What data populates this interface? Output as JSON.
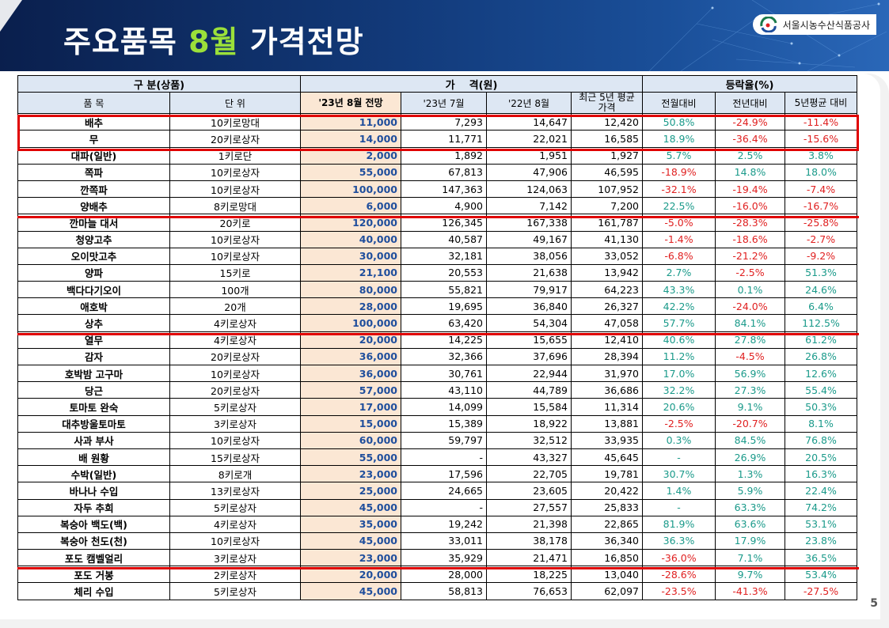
{
  "header": {
    "title_prefix": "주요품목 ",
    "title_accent": "8월",
    "title_suffix": " 가격전망",
    "org_name": "서울시농수산식품공사"
  },
  "table": {
    "group_headers": {
      "category": "구 분(상품)",
      "price": "가    격(원)",
      "change": "등락율(%)"
    },
    "col_headers": {
      "item": "품 목",
      "unit": "단 위",
      "forecast": "'23년 8월 전망",
      "jul23": "'23년 7월",
      "aug22": "'22년 8월",
      "avg5": "최근 5년 평균가격",
      "mom": "전월대비",
      "yoy": "전년대비",
      "vs5": "5년평균 대비"
    },
    "rows": [
      {
        "item": "배추",
        "unit": "10키로망대",
        "forecast": "11,000",
        "jul23": "7,293",
        "aug22": "14,647",
        "avg5": "12,420",
        "mom": "50.8%",
        "yoy": "-24.9%",
        "vs5": "-11.4%"
      },
      {
        "item": "무",
        "unit": "20키로상자",
        "forecast": "14,000",
        "jul23": "11,771",
        "aug22": "22,021",
        "avg5": "16,585",
        "mom": "18.9%",
        "yoy": "-36.4%",
        "vs5": "-15.6%"
      },
      {
        "item": "대파(일반)",
        "unit": "1키로단",
        "forecast": "2,000",
        "jul23": "1,892",
        "aug22": "1,951",
        "avg5": "1,927",
        "mom": "5.7%",
        "yoy": "2.5%",
        "vs5": "3.8%"
      },
      {
        "item": "쪽파",
        "unit": "10키로상자",
        "forecast": "55,000",
        "jul23": "67,813",
        "aug22": "47,906",
        "avg5": "46,595",
        "mom": "-18.9%",
        "yoy": "14.8%",
        "vs5": "18.0%"
      },
      {
        "item": "깐쪽파",
        "unit": "10키로상자",
        "forecast": "100,000",
        "jul23": "147,363",
        "aug22": "124,063",
        "avg5": "107,952",
        "mom": "-32.1%",
        "yoy": "-19.4%",
        "vs5": "-7.4%"
      },
      {
        "item": "양배추",
        "unit": "8키로망대",
        "forecast": "6,000",
        "jul23": "4,900",
        "aug22": "7,142",
        "avg5": "7,200",
        "mom": "22.5%",
        "yoy": "-16.0%",
        "vs5": "-16.7%"
      },
      {
        "item": "깐마늘 대서",
        "unit": "20키로",
        "forecast": "120,000",
        "jul23": "126,345",
        "aug22": "167,338",
        "avg5": "161,787",
        "mom": "-5.0%",
        "yoy": "-28.3%",
        "vs5": "-25.8%"
      },
      {
        "item": "청양고추",
        "unit": "10키로상자",
        "forecast": "40,000",
        "jul23": "40,587",
        "aug22": "49,167",
        "avg5": "41,130",
        "mom": "-1.4%",
        "yoy": "-18.6%",
        "vs5": "-2.7%"
      },
      {
        "item": "오이맛고추",
        "unit": "10키로상자",
        "forecast": "30,000",
        "jul23": "32,181",
        "aug22": "38,056",
        "avg5": "33,052",
        "mom": "-6.8%",
        "yoy": "-21.2%",
        "vs5": "-9.2%"
      },
      {
        "item": "양파",
        "unit": "15키로",
        "forecast": "21,100",
        "jul23": "20,553",
        "aug22": "21,638",
        "avg5": "13,942",
        "mom": "2.7%",
        "yoy": "-2.5%",
        "vs5": "51.3%"
      },
      {
        "item": "백다다기오이",
        "unit": "100개",
        "forecast": "80,000",
        "jul23": "55,821",
        "aug22": "79,917",
        "avg5": "64,223",
        "mom": "43.3%",
        "yoy": "0.1%",
        "vs5": "24.6%"
      },
      {
        "item": "애호박",
        "unit": "20개",
        "forecast": "28,000",
        "jul23": "19,695",
        "aug22": "36,840",
        "avg5": "26,327",
        "mom": "42.2%",
        "yoy": "-24.0%",
        "vs5": "6.4%"
      },
      {
        "item": "상추",
        "unit": "4키로상자",
        "forecast": "100,000",
        "jul23": "63,420",
        "aug22": "54,304",
        "avg5": "47,058",
        "mom": "57.7%",
        "yoy": "84.1%",
        "vs5": "112.5%"
      },
      {
        "item": "열무",
        "unit": "4키로상자",
        "forecast": "20,000",
        "jul23": "14,225",
        "aug22": "15,655",
        "avg5": "12,410",
        "mom": "40.6%",
        "yoy": "27.8%",
        "vs5": "61.2%"
      },
      {
        "item": "감자",
        "unit": "20키로상자",
        "forecast": "36,000",
        "jul23": "32,366",
        "aug22": "37,696",
        "avg5": "28,394",
        "mom": "11.2%",
        "yoy": "-4.5%",
        "vs5": "26.8%"
      },
      {
        "item": "호박밤 고구마",
        "unit": "10키로상자",
        "forecast": "36,000",
        "jul23": "30,761",
        "aug22": "22,944",
        "avg5": "31,970",
        "mom": "17.0%",
        "yoy": "56.9%",
        "vs5": "12.6%"
      },
      {
        "item": "당근",
        "unit": "20키로상자",
        "forecast": "57,000",
        "jul23": "43,110",
        "aug22": "44,789",
        "avg5": "36,686",
        "mom": "32.2%",
        "yoy": "27.3%",
        "vs5": "55.4%"
      },
      {
        "item": "토마토 완숙",
        "unit": "5키로상자",
        "forecast": "17,000",
        "jul23": "14,099",
        "aug22": "15,584",
        "avg5": "11,314",
        "mom": "20.6%",
        "yoy": "9.1%",
        "vs5": "50.3%"
      },
      {
        "item": "대추방울토마토",
        "unit": "3키로상자",
        "forecast": "15,000",
        "jul23": "15,389",
        "aug22": "18,922",
        "avg5": "13,881",
        "mom": "-2.5%",
        "yoy": "-20.7%",
        "vs5": "8.1%"
      },
      {
        "item": "사과 부사",
        "unit": "10키로상자",
        "forecast": "60,000",
        "jul23": "59,797",
        "aug22": "32,512",
        "avg5": "33,935",
        "mom": "0.3%",
        "yoy": "84.5%",
        "vs5": "76.8%"
      },
      {
        "item": "배 원황",
        "unit": "15키로상자",
        "forecast": "55,000",
        "jul23": "-",
        "aug22": "43,327",
        "avg5": "45,645",
        "mom": "-",
        "yoy": "26.9%",
        "vs5": "20.5%"
      },
      {
        "item": "수박(일반)",
        "unit": "8키로개",
        "forecast": "23,000",
        "jul23": "17,596",
        "aug22": "22,705",
        "avg5": "19,781",
        "mom": "30.7%",
        "yoy": "1.3%",
        "vs5": "16.3%"
      },
      {
        "item": "바나나 수입",
        "unit": "13키로상자",
        "forecast": "25,000",
        "jul23": "24,665",
        "aug22": "23,605",
        "avg5": "20,422",
        "mom": "1.4%",
        "yoy": "5.9%",
        "vs5": "22.4%"
      },
      {
        "item": "자두 추희",
        "unit": "5키로상자",
        "forecast": "45,000",
        "jul23": "-",
        "aug22": "27,557",
        "avg5": "25,833",
        "mom": "-",
        "yoy": "63.3%",
        "vs5": "74.2%"
      },
      {
        "item": "복숭아 백도(백)",
        "unit": "4키로상자",
        "forecast": "35,000",
        "jul23": "19,242",
        "aug22": "21,398",
        "avg5": "22,865",
        "mom": "81.9%",
        "yoy": "63.6%",
        "vs5": "53.1%"
      },
      {
        "item": "복숭아 천도(천)",
        "unit": "10키로상자",
        "forecast": "45,000",
        "jul23": "33,011",
        "aug22": "38,178",
        "avg5": "36,340",
        "mom": "36.3%",
        "yoy": "17.9%",
        "vs5": "23.8%"
      },
      {
        "item": "포도 캠벨얼리",
        "unit": "3키로상자",
        "forecast": "23,000",
        "jul23": "35,929",
        "aug22": "21,471",
        "avg5": "16,850",
        "mom": "-36.0%",
        "yoy": "7.1%",
        "vs5": "36.5%"
      },
      {
        "item": "포도 거봉",
        "unit": "2키로상자",
        "forecast": "20,000",
        "jul23": "28,000",
        "aug22": "18,225",
        "avg5": "13,040",
        "mom": "-28.6%",
        "yoy": "9.7%",
        "vs5": "53.4%"
      },
      {
        "item": "체리 수입",
        "unit": "5키로상자",
        "forecast": "45,000",
        "jul23": "58,813",
        "aug22": "76,653",
        "avg5": "62,097",
        "mom": "-23.5%",
        "yoy": "-41.3%",
        "vs5": "-27.5%"
      }
    ]
  },
  "colors": {
    "forecast_bg": "#fbe7d4",
    "forecast_text": "#1f4e9c",
    "positive": "#1a9a8a",
    "negative": "#e02020",
    "highlight": "#e00000"
  },
  "page_number": "5"
}
